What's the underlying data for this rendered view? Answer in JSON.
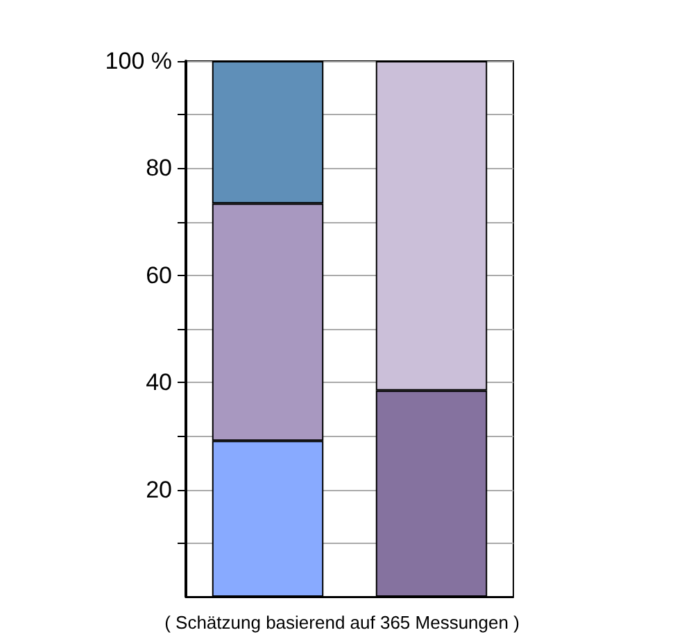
{
  "chart_data": {
    "type": "bar",
    "stacked": true,
    "categories": [
      null,
      null
    ],
    "series": [
      {
        "color": "#88aaff",
        "values": [
          29.1,
          null
        ]
      },
      {
        "color": "#a898c0",
        "values": [
          44.3,
          null
        ]
      },
      {
        "color": "#5f8fb8",
        "values": [
          26.6,
          null
        ]
      },
      {
        "color": "#85729f",
        "values": [
          null,
          38.5
        ]
      },
      {
        "color": "#cbbfd9",
        "values": [
          null,
          61.5
        ]
      }
    ],
    "ylim": [
      0,
      100
    ],
    "yticks": [
      {
        "value": 10,
        "label": null
      },
      20,
      {
        "value": 30,
        "label": null
      },
      40,
      {
        "value": 50,
        "label": null
      },
      60,
      {
        "value": 70,
        "label": null
      },
      80,
      {
        "value": 90,
        "label": null
      },
      {
        "value": 100,
        "label": "100 %"
      }
    ],
    "grid": "y",
    "annotations": [
      "( Schätzung basierend auf 365 Messungen )"
    ]
  }
}
